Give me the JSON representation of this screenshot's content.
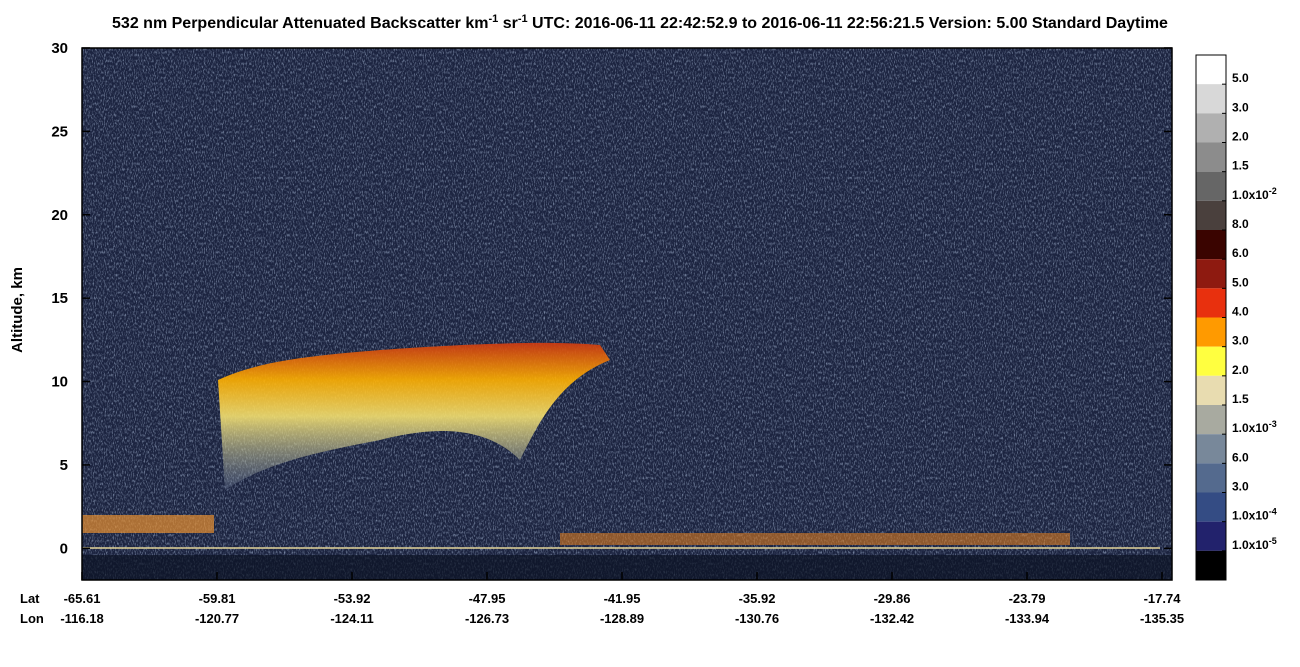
{
  "chart_data": {
    "type": "curtain",
    "title_segments": [
      "532 nm Perpendicular Attenuated Backscatter km",
      "-1",
      " sr",
      "-1",
      "  UTC: 2016-06-11 22:42:52.9 to 2016-06-11 22:56:21.5  Version: 5.00 Standard Daytime"
    ],
    "y_label": "Altitude, km",
    "ylim": [
      -1.9,
      30
    ],
    "yticks": [
      0,
      5,
      10,
      15,
      20,
      25,
      30
    ],
    "x_row_names": [
      "Lat",
      "Lon"
    ],
    "lat": [
      -65.61,
      -59.81,
      -53.92,
      -47.95,
      -41.95,
      -35.92,
      -29.86,
      -23.79,
      -17.74
    ],
    "lon": [
      -116.18,
      -120.77,
      -124.11,
      -126.73,
      -128.89,
      -130.76,
      -132.42,
      -133.94,
      -135.35
    ],
    "colorbar": {
      "colors": [
        "#ffffff",
        "#d8d8d8",
        "#b0b0b0",
        "#8c8c8c",
        "#666666",
        "#4a403d",
        "#3a0400",
        "#8e1a10",
        "#e8300e",
        "#ff9a00",
        "#ffff40",
        "#e8dcb0",
        "#a8aaa0",
        "#78889a",
        "#546a8e",
        "#344c84",
        "#22226c",
        "#000000"
      ],
      "labels": [
        "5.0",
        "3.0",
        "2.0",
        "1.5",
        "1.0x10",
        "8.0",
        "6.0",
        "5.0",
        "4.0",
        "3.0",
        "2.0",
        "1.5",
        "1.0x10",
        "6.0",
        "3.0",
        "1.0x10",
        "1.0x10"
      ],
      "label_exponents": [
        null,
        null,
        null,
        null,
        "-2",
        null,
        null,
        null,
        null,
        null,
        null,
        null,
        "-3",
        null,
        null,
        "-4",
        "-5"
      ]
    }
  }
}
